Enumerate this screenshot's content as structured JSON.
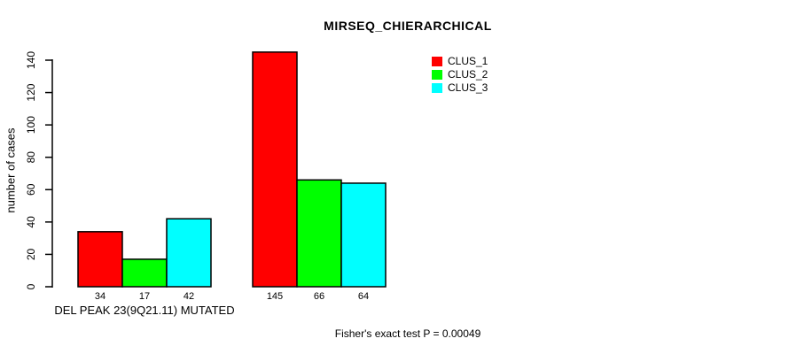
{
  "chart_data": {
    "type": "bar",
    "title": "MIRSEQ_CHIERARCHICAL",
    "ylabel": "number of cases",
    "xlabel": "",
    "yticks": [
      0,
      20,
      40,
      60,
      80,
      100,
      120,
      140
    ],
    "ylim": [
      0,
      145
    ],
    "grid": false,
    "legend_position": "top-right",
    "categories": [
      "DEL PEAK 23(9Q21.11) MUTATED",
      ""
    ],
    "series": [
      {
        "name": "CLUS_1",
        "color": "#ff0000",
        "values": [
          34,
          145
        ]
      },
      {
        "name": "CLUS_2",
        "color": "#00ff00",
        "values": [
          17,
          66
        ]
      },
      {
        "name": "CLUS_3",
        "color": "#00ffff",
        "values": [
          42,
          64
        ]
      }
    ],
    "bar_value_labels_shown": true,
    "footnote": "Fisher's exact test P = 0.00049"
  }
}
